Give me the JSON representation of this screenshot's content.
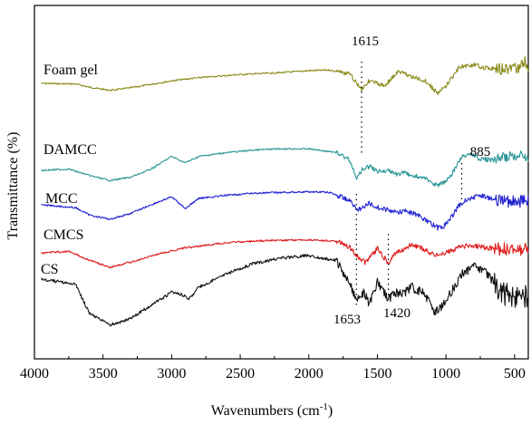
{
  "chart_data": {
    "type": "line",
    "xlabel": "Wavenumbers (cm",
    "xlabel_sup": "-1",
    "xlabel_close": ")",
    "ylabel": "Transmittance (%)",
    "xlim": [
      4000,
      400
    ],
    "x_ticks": [
      "4000",
      "3500",
      "3000",
      "2500",
      "2000",
      "1500",
      "1000",
      "500"
    ],
    "x_tick_values": [
      4000,
      3500,
      3000,
      2500,
      2000,
      1500,
      1000,
      500
    ],
    "grid": false,
    "y_ticks_shown": false,
    "series": [
      {
        "name": "Foam gel",
        "color": "#8b8b1a",
        "points": [
          [
            3950,
            0.0
          ],
          [
            3700,
            0.05
          ],
          [
            3600,
            0.3
          ],
          [
            3450,
            0.55
          ],
          [
            3300,
            0.35
          ],
          [
            3000,
            -0.2
          ],
          [
            2800,
            -0.45
          ],
          [
            2500,
            -0.7
          ],
          [
            2200,
            -0.85
          ],
          [
            2000,
            -1.0
          ],
          [
            1850,
            -1.05
          ],
          [
            1700,
            -0.7
          ],
          [
            1615,
            0.45
          ],
          [
            1560,
            -0.2
          ],
          [
            1450,
            0.2
          ],
          [
            1350,
            -0.9
          ],
          [
            1300,
            -0.8
          ],
          [
            1250,
            -0.5
          ],
          [
            1150,
            -0.2
          ],
          [
            1060,
            0.8
          ],
          [
            1000,
            0.2
          ],
          [
            900,
            -1.3
          ],
          [
            800,
            -1.45
          ],
          [
            700,
            -1.2
          ],
          [
            600,
            -1.1
          ],
          [
            480,
            -1.2
          ],
          [
            420,
            -1.7
          ],
          [
            400,
            -1.2
          ]
        ]
      },
      {
        "name": "DAMCC",
        "color": "#2a9595",
        "points": [
          [
            3950,
            0.0
          ],
          [
            3750,
            -0.1
          ],
          [
            3600,
            0.4
          ],
          [
            3450,
            0.8
          ],
          [
            3300,
            0.55
          ],
          [
            3150,
            -0.1
          ],
          [
            3000,
            -1.1
          ],
          [
            2900,
            -0.6
          ],
          [
            2800,
            -1.1
          ],
          [
            2600,
            -1.4
          ],
          [
            2400,
            -1.6
          ],
          [
            2200,
            -1.7
          ],
          [
            2000,
            -1.7
          ],
          [
            1800,
            -1.4
          ],
          [
            1700,
            -0.8
          ],
          [
            1650,
            0.6
          ],
          [
            1600,
            -0.2
          ],
          [
            1550,
            -0.3
          ],
          [
            1500,
            0.1
          ],
          [
            1430,
            0.0
          ],
          [
            1370,
            0.3
          ],
          [
            1300,
            0.2
          ],
          [
            1250,
            0.4
          ],
          [
            1160,
            0.6
          ],
          [
            1100,
            1.0
          ],
          [
            1060,
            1.2
          ],
          [
            1000,
            0.9
          ],
          [
            950,
            0.2
          ],
          [
            885,
            -1.1
          ],
          [
            820,
            -1.3
          ],
          [
            750,
            -0.9
          ],
          [
            650,
            -0.8
          ],
          [
            500,
            -1.2
          ],
          [
            400,
            -1.1
          ]
        ]
      },
      {
        "name": "MCC",
        "color": "#1e1ed2",
        "points": [
          [
            3950,
            0.0
          ],
          [
            3700,
            0.2
          ],
          [
            3600,
            0.7
          ],
          [
            3450,
            1.0
          ],
          [
            3300,
            0.6
          ],
          [
            3150,
            0.0
          ],
          [
            3000,
            -0.55
          ],
          [
            2900,
            0.25
          ],
          [
            2800,
            -0.45
          ],
          [
            2600,
            -0.65
          ],
          [
            2400,
            -0.8
          ],
          [
            2200,
            -0.85
          ],
          [
            2000,
            -0.9
          ],
          [
            1850,
            -0.85
          ],
          [
            1700,
            -0.3
          ],
          [
            1645,
            0.4
          ],
          [
            1560,
            -0.1
          ],
          [
            1460,
            0.3
          ],
          [
            1370,
            0.5
          ],
          [
            1300,
            0.45
          ],
          [
            1200,
            0.7
          ],
          [
            1160,
            1.0
          ],
          [
            1110,
            1.3
          ],
          [
            1060,
            1.6
          ],
          [
            1020,
            1.5
          ],
          [
            950,
            0.7
          ],
          [
            900,
            0.0
          ],
          [
            850,
            -0.4
          ],
          [
            750,
            -0.6
          ],
          [
            650,
            -0.4
          ],
          [
            500,
            -0.2
          ],
          [
            400,
            -0.3
          ]
        ]
      },
      {
        "name": "CMCS",
        "color": "#e01c1c",
        "points": [
          [
            3950,
            0.0
          ],
          [
            3750,
            -0.1
          ],
          [
            3600,
            0.5
          ],
          [
            3450,
            1.0
          ],
          [
            3300,
            0.65
          ],
          [
            3100,
            0.1
          ],
          [
            2900,
            -0.35
          ],
          [
            2600,
            -0.7
          ],
          [
            2300,
            -0.85
          ],
          [
            2000,
            -0.9
          ],
          [
            1800,
            -0.8
          ],
          [
            1700,
            -0.4
          ],
          [
            1650,
            0.25
          ],
          [
            1590,
            0.65
          ],
          [
            1540,
            0.2
          ],
          [
            1500,
            -0.3
          ],
          [
            1420,
            0.7
          ],
          [
            1370,
            0.0
          ],
          [
            1320,
            -0.2
          ],
          [
            1250,
            -0.55
          ],
          [
            1150,
            -0.2
          ],
          [
            1070,
            0.2
          ],
          [
            1000,
            0.0
          ],
          [
            900,
            -0.4
          ],
          [
            800,
            -0.5
          ],
          [
            650,
            -0.3
          ],
          [
            500,
            -0.2
          ],
          [
            400,
            -0.3
          ]
        ]
      },
      {
        "name": "CS",
        "color": "#111111",
        "points": [
          [
            3950,
            0.0
          ],
          [
            3700,
            0.2
          ],
          [
            3600,
            1.3
          ],
          [
            3450,
            1.75
          ],
          [
            3300,
            1.5
          ],
          [
            3150,
            1.0
          ],
          [
            3000,
            0.5
          ],
          [
            2920,
            0.6
          ],
          [
            2870,
            0.75
          ],
          [
            2800,
            0.3
          ],
          [
            2600,
            -0.2
          ],
          [
            2400,
            -0.6
          ],
          [
            2200,
            -0.8
          ],
          [
            2000,
            -0.9
          ],
          [
            1800,
            -0.7
          ],
          [
            1700,
            0.2
          ],
          [
            1653,
            0.85
          ],
          [
            1600,
            0.5
          ],
          [
            1560,
            0.9
          ],
          [
            1500,
            0.1
          ],
          [
            1420,
            0.8
          ],
          [
            1380,
            0.5
          ],
          [
            1320,
            0.6
          ],
          [
            1250,
            0.3
          ],
          [
            1150,
            0.6
          ],
          [
            1080,
            1.3
          ],
          [
            1030,
            1.0
          ],
          [
            950,
            0.4
          ],
          [
            880,
            -0.2
          ],
          [
            800,
            -0.5
          ],
          [
            700,
            -0.2
          ],
          [
            600,
            0.5
          ],
          [
            500,
            0.7
          ],
          [
            400,
            0.6
          ]
        ]
      }
    ],
    "annotations": [
      {
        "text": "1615",
        "x": 1615,
        "series": "Foam gel",
        "side": "above"
      },
      {
        "text": "885",
        "x": 885,
        "series": "DAMCC",
        "side": "above"
      },
      {
        "text": "1653",
        "x": 1653,
        "series": "CS",
        "side": "below"
      },
      {
        "text": "1420",
        "x": 1420,
        "series": "CS",
        "side": "below"
      }
    ]
  },
  "colors": {
    "axis": "#000000",
    "background": "#ffffff"
  }
}
